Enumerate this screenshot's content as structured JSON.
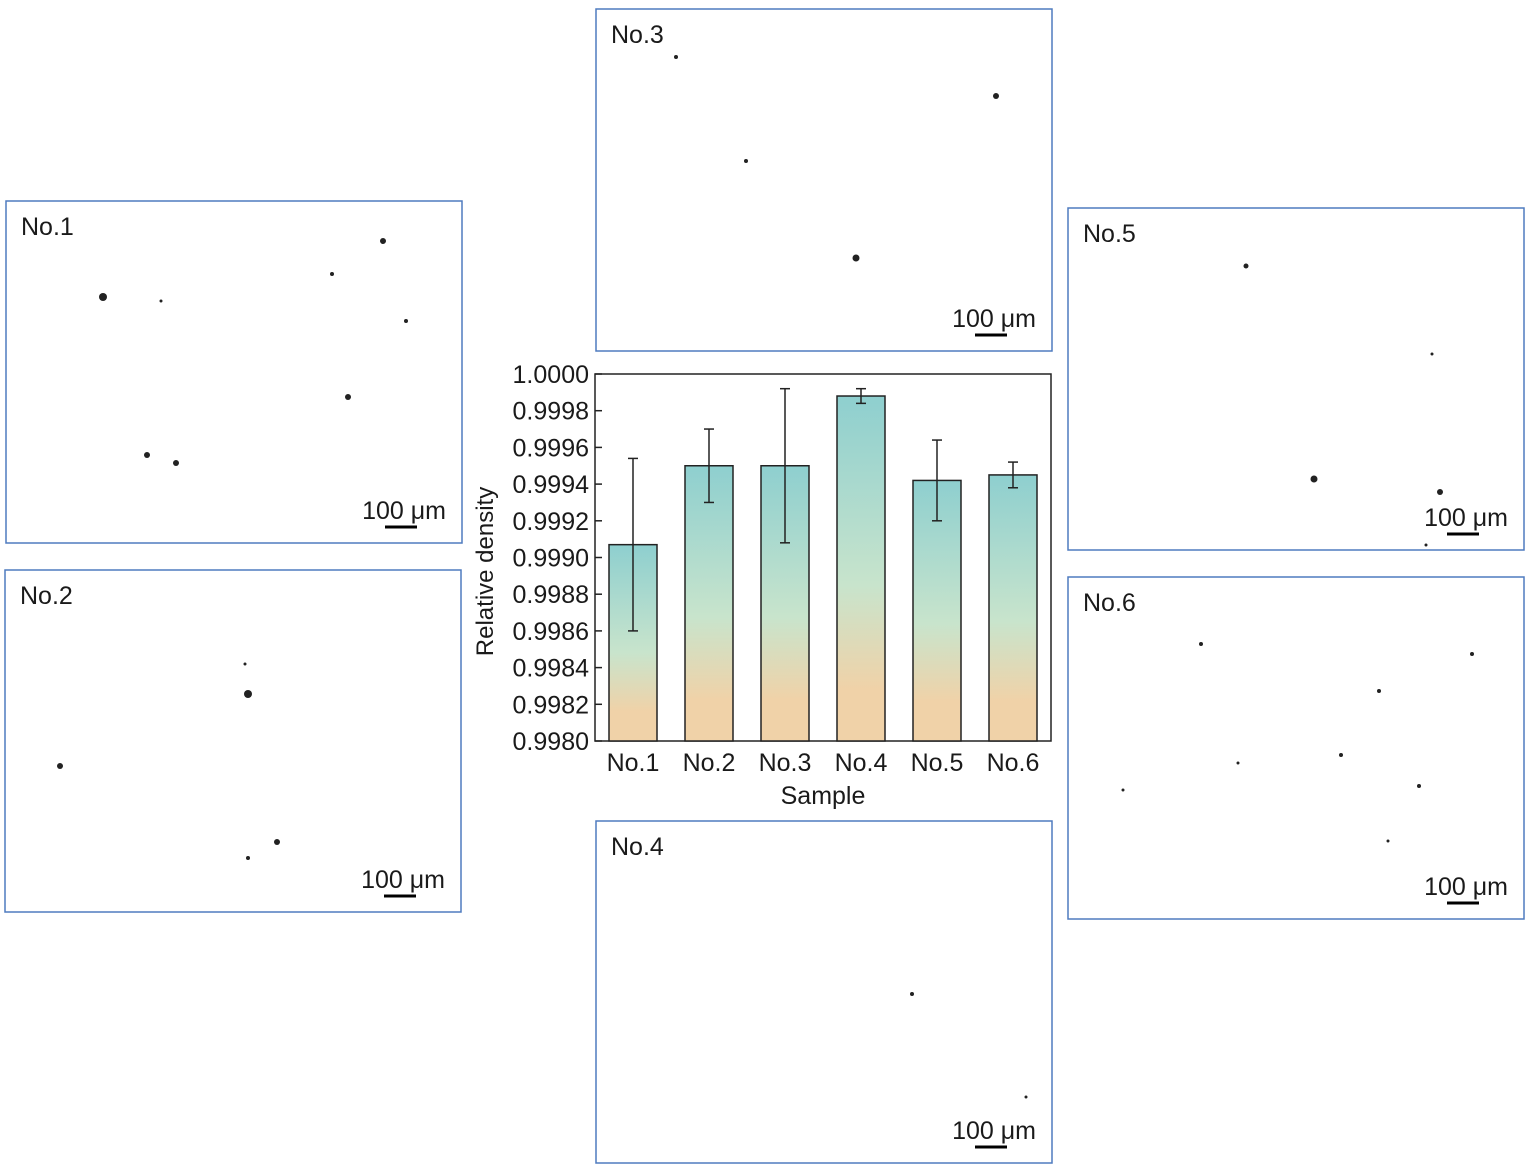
{
  "chart_data": {
    "type": "bar",
    "x_label": "Sample",
    "y_label": "Relative density",
    "categories": [
      "No.1",
      "No.2",
      "No.3",
      "No.4",
      "No.5",
      "No.6"
    ],
    "values": [
      0.99907,
      0.9995,
      0.9995,
      0.99988,
      0.99942,
      0.99945
    ],
    "errors": [
      0.00047,
      0.0002,
      0.00042,
      4e-05,
      0.00022,
      7e-05
    ],
    "colors": [
      "#8ecfcf",
      "#c8e4cc",
      "#f0d2a8"
    ],
    "ylim": [
      0.998,
      1.0
    ],
    "yticks": [
      {
        "value": 0.998,
        "label": "0.9980"
      },
      {
        "value": 0.9982,
        "label": "0.9982"
      },
      {
        "value": 0.9984,
        "label": "0.9984"
      },
      {
        "value": 0.9986,
        "label": "0.9986"
      },
      {
        "value": 0.9988,
        "label": "0.9988"
      },
      {
        "value": 0.999,
        "label": "0.9990"
      },
      {
        "value": 0.9992,
        "label": "0.9992"
      },
      {
        "value": 0.9994,
        "label": "0.9994"
      },
      {
        "value": 0.9996,
        "label": "0.9996"
      },
      {
        "value": 0.9998,
        "label": "0.9998"
      },
      {
        "value": 1.0,
        "label": "1.0000"
      }
    ],
    "grid": false
  },
  "panels": [
    {
      "label": "No.1",
      "scale": "100 μm"
    },
    {
      "label": "No.2",
      "scale": "100 μm"
    },
    {
      "label": "No.3",
      "scale": "100 μm"
    },
    {
      "label": "No.4",
      "scale": "100 μm"
    },
    {
      "label": "No.5",
      "scale": "100 μm"
    },
    {
      "label": "No.6",
      "scale": "100 μm"
    }
  ]
}
